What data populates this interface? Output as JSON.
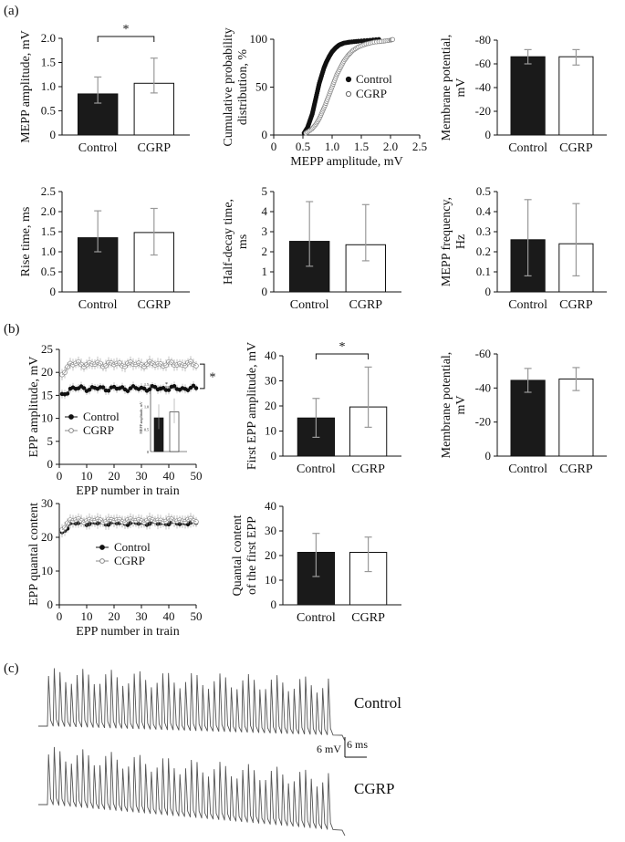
{
  "panel_labels": [
    "(a)",
    "(b)",
    "(c)"
  ],
  "colors": {
    "control_fill": "#1a1a1a",
    "cgrp_fill": "#ffffff",
    "error_bar": "#999999",
    "trace": "#555555"
  },
  "chart_data": [
    {
      "id": "a1",
      "type": "bar",
      "panel": "(a)",
      "categories": [
        "Control",
        "CGRP"
      ],
      "values": [
        0.85,
        1.07
      ],
      "err_low": [
        0.66,
        0.87
      ],
      "err_high": [
        1.2,
        1.59
      ],
      "ylabel": "MEPP amplitude, mV",
      "ylim": [
        0,
        2.0
      ],
      "yticks": [
        "0",
        "0.5",
        "1.0",
        "1.5",
        "2.0"
      ],
      "significance": "*"
    },
    {
      "id": "a2",
      "type": "scatter",
      "panel": "(a)",
      "xlabel": "MEPP amplitude, mV",
      "ylabel": "Cumulative probability distribution, %",
      "xlim": [
        0,
        2.5
      ],
      "ylim": [
        0,
        100
      ],
      "xticks": [
        "0",
        "0.5",
        "1.0",
        "1.5",
        "2.0",
        "2.5"
      ],
      "yticks": [
        "0",
        "50",
        "100"
      ],
      "legend": [
        "Control",
        "CGRP"
      ],
      "legend_position": "right",
      "series": [
        {
          "name": "Control",
          "x": [
            0.52,
            0.58,
            0.62,
            0.66,
            0.69,
            0.72,
            0.75,
            0.78,
            0.82,
            0.86,
            0.9,
            0.95,
            1.0,
            1.06,
            1.12,
            1.2,
            1.3,
            1.45,
            1.65,
            1.85
          ],
          "y": [
            2,
            8,
            15,
            22,
            30,
            38,
            46,
            54,
            62,
            70,
            76,
            82,
            87,
            91,
            94,
            96,
            97,
            98,
            99,
            100
          ]
        },
        {
          "name": "CGRP",
          "x": [
            0.55,
            0.65,
            0.72,
            0.78,
            0.83,
            0.88,
            0.93,
            0.98,
            1.03,
            1.08,
            1.14,
            1.2,
            1.27,
            1.35,
            1.45,
            1.58,
            1.72,
            1.88,
            2.0,
            2.05
          ],
          "y": [
            2,
            6,
            11,
            17,
            24,
            31,
            39,
            47,
            55,
            63,
            70,
            77,
            83,
            88,
            92,
            95,
            97,
            98,
            99,
            100
          ]
        }
      ]
    },
    {
      "id": "a3",
      "type": "bar",
      "panel": "(a)",
      "categories": [
        "Control",
        "CGRP"
      ],
      "values": [
        -66,
        -66
      ],
      "err_low": [
        -60,
        -59
      ],
      "err_high": [
        -72,
        -72
      ],
      "ylabel": "Membrane potential, mV",
      "ylim": [
        0,
        -80
      ],
      "yticks": [
        "0",
        "-20",
        "-40",
        "-60",
        "-80"
      ]
    },
    {
      "id": "a4",
      "type": "bar",
      "panel": "(a)",
      "categories": [
        "Control",
        "CGRP"
      ],
      "values": [
        1.35,
        1.48
      ],
      "err_low": [
        1.0,
        0.92
      ],
      "err_high": [
        2.02,
        2.08
      ],
      "ylabel": "Rise time, ms",
      "ylim": [
        0,
        2.5
      ],
      "yticks": [
        "0",
        "0.5",
        "1.0",
        "1.5",
        "2.0",
        "2.5"
      ]
    },
    {
      "id": "a5",
      "type": "bar",
      "panel": "(a)",
      "categories": [
        "Control",
        "CGRP"
      ],
      "values": [
        2.52,
        2.35
      ],
      "err_low": [
        1.28,
        1.55
      ],
      "err_high": [
        4.5,
        4.35
      ],
      "ylabel": "Half-decay time, ms",
      "ylim": [
        0,
        5
      ],
      "yticks": [
        "0",
        "1",
        "2",
        "3",
        "4",
        "5"
      ]
    },
    {
      "id": "a6",
      "type": "bar",
      "panel": "(a)",
      "categories": [
        "Control",
        "CGRP"
      ],
      "values": [
        0.26,
        0.24
      ],
      "err_low": [
        0.08,
        0.08
      ],
      "err_high": [
        0.46,
        0.44
      ],
      "ylabel": "MEPP frequency, Hz",
      "ylim": [
        0,
        0.5
      ],
      "yticks": [
        "0",
        "0.1",
        "0.2",
        "0.3",
        "0.4",
        "0.5"
      ]
    },
    {
      "id": "b1",
      "type": "line",
      "panel": "(b)",
      "xlabel": "EPP number in train",
      "ylabel": "EPP amplitude, mV",
      "xlim": [
        0,
        50
      ],
      "ylim": [
        0,
        25
      ],
      "xticks": [
        "0",
        "10",
        "20",
        "30",
        "40",
        "50"
      ],
      "yticks": [
        "0",
        "5",
        "10",
        "15",
        "20",
        "25"
      ],
      "legend": [
        "Control",
        "CGRP"
      ],
      "significance": "*",
      "series": [
        {
          "name": "Control",
          "start": 14.8,
          "plateau": 16.5,
          "err": 1.0
        },
        {
          "name": "CGRP",
          "start": 19.8,
          "plateau": 21.8,
          "err": 1.3
        }
      ],
      "inset": {
        "ylabel": "MEPP amplitude, mV",
        "yticks": [
          "0",
          "0.5",
          "1.0",
          "1.5"
        ],
        "values": [
          0.75,
          0.88
        ],
        "significance": "*"
      }
    },
    {
      "id": "b2",
      "type": "bar",
      "panel": "(b)",
      "categories": [
        "Control",
        "CGRP"
      ],
      "values": [
        15.2,
        19.6
      ],
      "err_low": [
        7.5,
        11.5
      ],
      "err_high": [
        23.0,
        35.5
      ],
      "ylabel": "First EPP amplitude, mV",
      "ylim": [
        0,
        40
      ],
      "yticks": [
        "0",
        "10",
        "20",
        "30",
        "40"
      ],
      "significance": "*"
    },
    {
      "id": "b3",
      "type": "bar",
      "panel": "(b)",
      "categories": [
        "Control",
        "CGRP"
      ],
      "values": [
        -44.5,
        -45.3
      ],
      "err_low": [
        -37.5,
        -38.5
      ],
      "err_high": [
        -51.5,
        -52.0
      ],
      "ylabel": "Membrane potential, mV",
      "ylim": [
        0,
        -60
      ],
      "yticks": [
        "0",
        "-20",
        "-40",
        "-60"
      ]
    },
    {
      "id": "b4",
      "type": "line",
      "panel": "(b)",
      "xlabel": "EPP number in train",
      "ylabel": "EPP quantal content",
      "xlim": [
        0,
        50
      ],
      "ylim": [
        0,
        30
      ],
      "xticks": [
        "0",
        "10",
        "20",
        "30",
        "40",
        "50"
      ],
      "yticks": [
        "0",
        "10",
        "20",
        "30"
      ],
      "legend": [
        "Control",
        "CGRP"
      ],
      "series": [
        {
          "name": "Control",
          "start": 21.0,
          "plateau": 24.2,
          "err": 1.6
        },
        {
          "name": "CGRP",
          "start": 22.5,
          "plateau": 25.0,
          "err": 1.8
        }
      ]
    },
    {
      "id": "b5",
      "type": "bar",
      "panel": "(b)",
      "categories": [
        "Control",
        "CGRP"
      ],
      "values": [
        21.3,
        21.3
      ],
      "err_low": [
        11.5,
        13.5
      ],
      "err_high": [
        29.0,
        27.5
      ],
      "ylabel": "Quantal content of the first EPP",
      "ylim": [
        0,
        40
      ],
      "yticks": [
        "0",
        "10",
        "20",
        "30",
        "40"
      ]
    }
  ],
  "traces": {
    "labels": [
      "Control",
      "CGRP"
    ],
    "scale_mv": "6 mV",
    "scale_ms": "6 ms",
    "n_peaks": 50
  }
}
